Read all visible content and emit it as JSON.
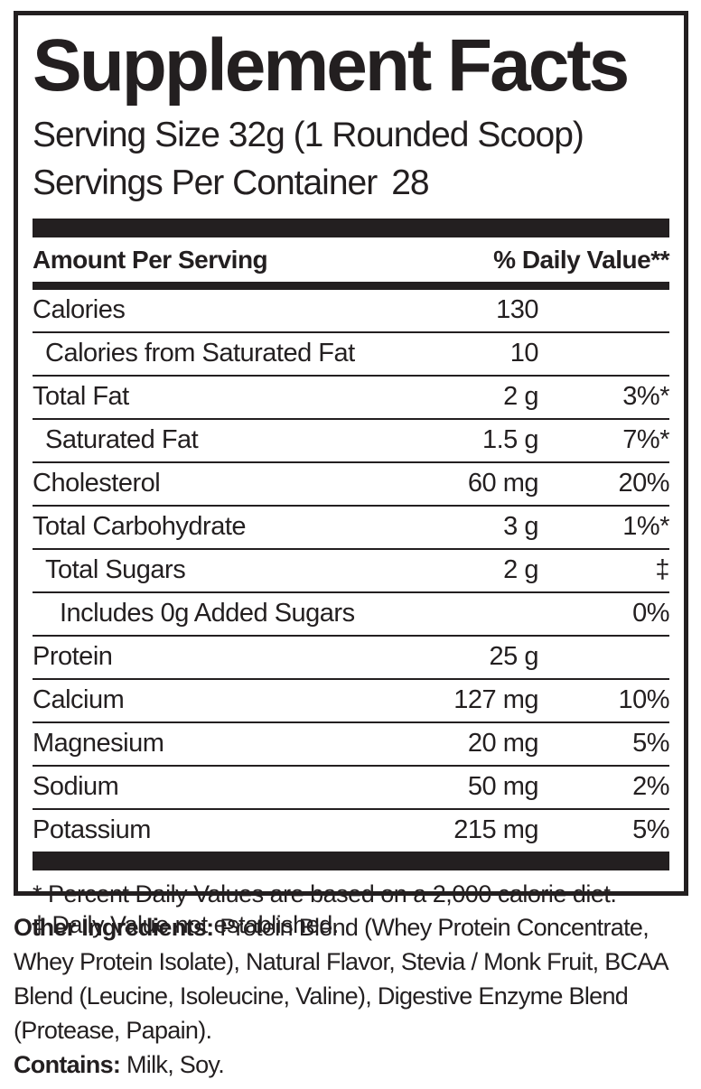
{
  "colors": {
    "ink": "#231f20",
    "background": "#ffffff"
  },
  "header": {
    "title": "Supplement Facts",
    "serving_size_line": "Serving Size 32g (1 Rounded Scoop)",
    "servings_label": "Servings Per Container",
    "servings_value": "28"
  },
  "table": {
    "amount_header": "Amount Per Serving",
    "dv_header": "% Daily Value**",
    "rows": [
      {
        "name": "Calories",
        "amount": "130",
        "dv": "",
        "indent": 0
      },
      {
        "name": "Calories from Saturated Fat",
        "amount": "10",
        "dv": "",
        "indent": 1
      },
      {
        "name": "Total Fat",
        "amount": "2 g",
        "dv": "3%*",
        "indent": 0
      },
      {
        "name": "Saturated Fat",
        "amount": "1.5 g",
        "dv": "7%*",
        "indent": 1
      },
      {
        "name": "Cholesterol",
        "amount": "60 mg",
        "dv": "20%",
        "indent": 0
      },
      {
        "name": "Total Carbohydrate",
        "amount": "3 g",
        "dv": "1%*",
        "indent": 0
      },
      {
        "name": "Total Sugars",
        "amount": "2 g",
        "dv": "‡",
        "indent": 1
      },
      {
        "name": "Includes 0g Added Sugars",
        "amount": "",
        "dv": "0%",
        "indent": 2
      },
      {
        "name": "Protein",
        "amount": "25 g",
        "dv": "",
        "indent": 0
      },
      {
        "name": "Calcium",
        "amount": "127 mg",
        "dv": "10%",
        "indent": 0
      },
      {
        "name": "Magnesium",
        "amount": "20 mg",
        "dv": "5%",
        "indent": 0
      },
      {
        "name": "Sodium",
        "amount": "50 mg",
        "dv": "2%",
        "indent": 0
      },
      {
        "name": "Potassium",
        "amount": "215 mg",
        "dv": "5%",
        "indent": 0
      }
    ]
  },
  "footnotes": [
    "* Percent Daily Values are based on a 2,000 calorie diet.",
    "‡ Daily Value not established."
  ],
  "other_ingredients": {
    "label": "Other Ingredients:",
    "text": " Protein Blend (Whey Protein Concentrate, Whey Protein Isolate), Natural Flavor, Stevia / Monk Fruit, BCAA Blend (Leucine, Isoleucine, Valine), Digestive Enzyme Blend (Protease, Papain)."
  },
  "contains": {
    "label": "Contains:",
    "text": " Milk, Soy."
  }
}
